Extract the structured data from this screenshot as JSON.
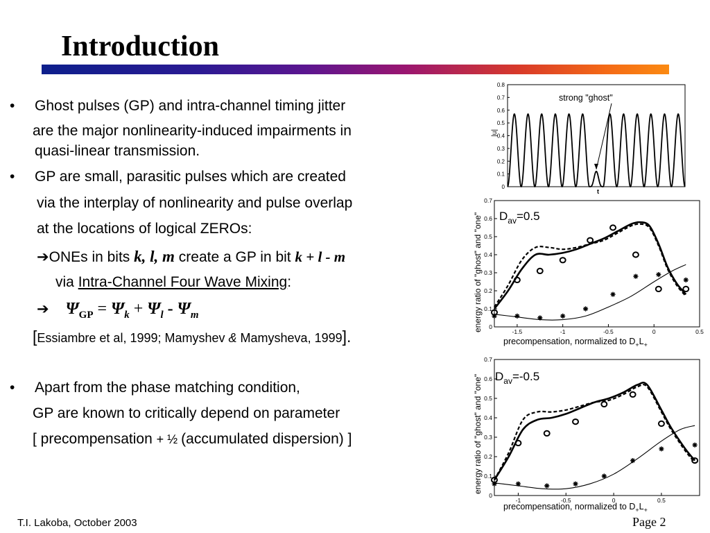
{
  "slide": {
    "title": "Introduction",
    "lines": [
      "Ghost pulses (GP) and intra-channel timing jitter",
      "are the major nonlinearity-induced impairments in",
      "quasi-linear transmission.",
      "GP are small, parasitic pulses which are created",
      "via the interplay of nonlinearity and pulse overlap",
      "at the locations of logical  ZEROs:"
    ],
    "ones_line": {
      "arrow": "➔",
      "a": "ONEs in bits ",
      "b": "k, l, m",
      "c": " create a GP in bit ",
      "d": "k + l - m"
    },
    "via_line": {
      "a": "via ",
      "link": "Intra-Channel Four Wave Mixing",
      "b": ":"
    },
    "formula": {
      "arrow": "➔",
      "psi": "Ψ",
      "gp": "GP",
      "eq": " = ",
      "plus": " + ",
      "minus": " - ",
      "k": "k",
      "l": "l",
      "m": "m"
    },
    "refs": {
      "open": "[",
      "a": "Essiambre et al, 1999;  Mamyshev ",
      "amp": "&",
      "b": " Mamysheva, 1999",
      "close": "]."
    },
    "lines2": [
      "Apart from the phase matching condition,",
      "GP are known to critically depend on parameter"
    ],
    "bracket": {
      "a": "[ precompensation ",
      "plus": "+",
      "half": " ½ ",
      "b": "(accumulated dispersion) ]"
    },
    "footer_left": "T.I. Lakoba,   October 2003",
    "footer_right": "Page 2",
    "bullet": "•"
  },
  "chart_data": [
    {
      "type": "line",
      "title": "",
      "xlabel": "t",
      "ylabel": "|u|",
      "annotation": "strong \"ghost\"",
      "ylim": [
        0,
        0.8
      ],
      "yticks": [
        "0",
        "0.1",
        "0.2",
        "0.3",
        "0.4",
        "0.5",
        "0.6",
        "0.7",
        "0.8"
      ],
      "pulse_peak": 0.57,
      "pulses": 13,
      "ghost_index": 6,
      "ghost_peak": 0.12
    },
    {
      "type": "line",
      "label": "D",
      "label_sub": "av",
      "label_value": "=0.5",
      "xlabel": "precompensation, normalized to  D",
      "xlabel_sub": "+",
      "xlabel_L": "L",
      "ylabel": "energy ratio of  \"ghost\" and \"one\"",
      "xlim": [
        -1.75,
        0.5
      ],
      "ylim": [
        0,
        0.7
      ],
      "xticks": [
        -1.5,
        -1,
        -0.5,
        0,
        0.5
      ],
      "xtick_labels": [
        "-1.5",
        "-1",
        "-0.5",
        "0",
        "0.5"
      ],
      "yticks": [
        0,
        0.1,
        0.2,
        0.3,
        0.4,
        0.5,
        0.6,
        0.7
      ],
      "ytick_labels": [
        "0",
        "0.1",
        "0.2",
        "0.3",
        "0.4",
        "0.5",
        "0.6",
        "0.7"
      ],
      "series": [
        {
          "style": "thick-solid",
          "x": [
            -1.75,
            -1.6,
            -1.45,
            -1.3,
            -1.15,
            -1.0,
            -0.85,
            -0.7,
            -0.55,
            -0.4,
            -0.25,
            -0.15,
            -0.05,
            0.05,
            0.15,
            0.25,
            0.35
          ],
          "y": [
            0.1,
            0.2,
            0.32,
            0.4,
            0.4,
            0.41,
            0.43,
            0.46,
            0.49,
            0.53,
            0.57,
            0.58,
            0.56,
            0.46,
            0.33,
            0.24,
            0.18
          ]
        },
        {
          "style": "dashed",
          "x": [
            -1.75,
            -1.6,
            -1.45,
            -1.3,
            -1.15,
            -1.0,
            -0.85,
            -0.7,
            -0.55,
            -0.4,
            -0.25,
            -0.15,
            -0.05,
            0.05,
            0.15,
            0.25,
            0.35
          ],
          "y": [
            0.11,
            0.23,
            0.37,
            0.44,
            0.44,
            0.43,
            0.44,
            0.46,
            0.48,
            0.52,
            0.56,
            0.57,
            0.55,
            0.45,
            0.32,
            0.23,
            0.17
          ]
        },
        {
          "style": "thin-solid",
          "x": [
            -1.75,
            -1.5,
            -1.25,
            -1.0,
            -0.75,
            -0.5,
            -0.25,
            0.0,
            0.2,
            0.35
          ],
          "y": [
            0.07,
            0.055,
            0.04,
            0.04,
            0.06,
            0.11,
            0.17,
            0.25,
            0.31,
            0.345
          ]
        },
        {
          "style": "circles",
          "x": [
            -1.75,
            -1.5,
            -1.25,
            -1.0,
            -0.7,
            -0.45,
            -0.2,
            0.05,
            0.35
          ],
          "y": [
            0.08,
            0.26,
            0.31,
            0.37,
            0.48,
            0.55,
            0.4,
            0.21,
            0.21
          ]
        },
        {
          "style": "stars",
          "x": [
            -1.75,
            -1.5,
            -1.25,
            -1.0,
            -0.75,
            -0.45,
            -0.2,
            0.05,
            0.35
          ],
          "y": [
            0.06,
            0.06,
            0.05,
            0.06,
            0.1,
            0.18,
            0.28,
            0.29,
            0.26
          ]
        }
      ]
    },
    {
      "type": "line",
      "label": "D",
      "label_sub": "av",
      "label_value": "=-0.5",
      "xlabel": "precompensation, normalized to  D",
      "xlabel_sub": "+",
      "xlabel_L": "L",
      "ylabel": "energy ratio of  \"ghost\" and \"one\"",
      "xlim": [
        -1.25,
        0.9
      ],
      "ylim": [
        0,
        0.7
      ],
      "xticks": [
        -1,
        -0.5,
        0,
        0.5
      ],
      "xtick_labels": [
        "-1",
        "-0.5",
        "0",
        "0.5"
      ],
      "yticks": [
        0,
        0.1,
        0.2,
        0.3,
        0.4,
        0.5,
        0.6,
        0.7
      ],
      "ytick_labels": [
        "0",
        "0.1",
        "0.2",
        "0.3",
        "0.4",
        "0.5",
        "0.6",
        "0.7"
      ],
      "series": [
        {
          "style": "thick-solid",
          "x": [
            -1.25,
            -1.1,
            -0.95,
            -0.8,
            -0.65,
            -0.5,
            -0.35,
            -0.2,
            -0.05,
            0.1,
            0.25,
            0.35,
            0.5,
            0.6,
            0.75,
            0.85
          ],
          "y": [
            0.08,
            0.2,
            0.34,
            0.39,
            0.4,
            0.42,
            0.45,
            0.48,
            0.5,
            0.53,
            0.57,
            0.57,
            0.44,
            0.35,
            0.24,
            0.18
          ]
        },
        {
          "style": "dashed",
          "x": [
            -1.25,
            -1.1,
            -0.95,
            -0.8,
            -0.65,
            -0.5,
            -0.35,
            -0.2,
            -0.05,
            0.1,
            0.25,
            0.35,
            0.5,
            0.6,
            0.75,
            0.85
          ],
          "y": [
            0.08,
            0.22,
            0.39,
            0.43,
            0.43,
            0.44,
            0.46,
            0.48,
            0.49,
            0.52,
            0.56,
            0.56,
            0.43,
            0.34,
            0.23,
            0.17
          ]
        },
        {
          "style": "thin-solid",
          "x": [
            -1.25,
            -1.0,
            -0.75,
            -0.5,
            -0.25,
            0.0,
            0.25,
            0.5,
            0.7,
            0.85
          ],
          "y": [
            0.065,
            0.05,
            0.035,
            0.035,
            0.06,
            0.11,
            0.19,
            0.28,
            0.34,
            0.36
          ]
        },
        {
          "style": "circles",
          "x": [
            -1.25,
            -1.0,
            -0.7,
            -0.4,
            -0.1,
            0.2,
            0.5,
            0.85
          ],
          "y": [
            0.08,
            0.27,
            0.32,
            0.38,
            0.47,
            0.52,
            0.37,
            0.18
          ]
        },
        {
          "style": "stars",
          "x": [
            -1.25,
            -1.0,
            -0.7,
            -0.4,
            -0.1,
            0.2,
            0.5,
            0.85
          ],
          "y": [
            0.06,
            0.06,
            0.05,
            0.06,
            0.1,
            0.18,
            0.24,
            0.26
          ]
        }
      ]
    }
  ]
}
